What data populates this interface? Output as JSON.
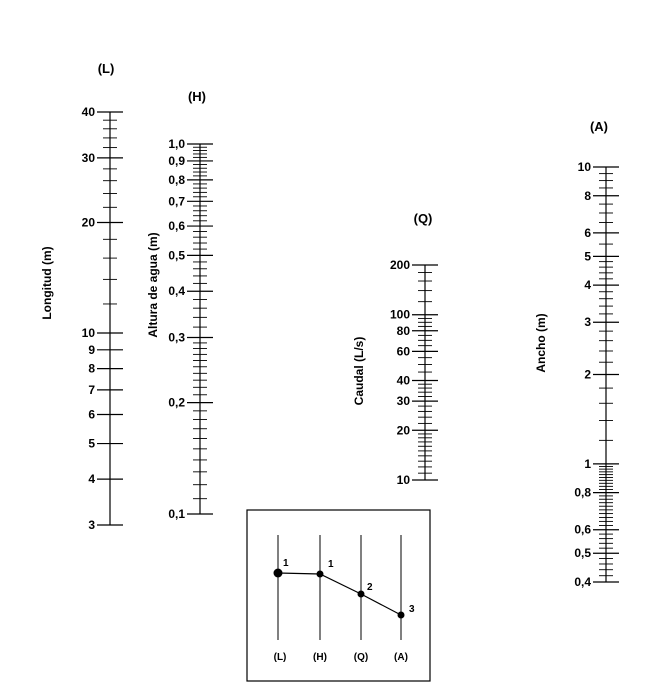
{
  "scales": [
    {
      "id": "L",
      "title": "(L)",
      "name": "Longitud (m)",
      "scale": "log",
      "range": [
        3,
        40
      ],
      "labels": [
        "40",
        "30",
        "20",
        "10",
        "9",
        "8",
        "7",
        "6",
        "5",
        "4",
        "3"
      ]
    },
    {
      "id": "H",
      "title": "(H)",
      "name": "Altura de agua (m)",
      "scale": "log",
      "range": [
        0.1,
        1.0
      ],
      "labels": [
        "1,0",
        "0,9",
        "0,8",
        "0,7",
        "0,6",
        "0,5",
        "0,4",
        "0,3",
        "0,2",
        "0,1"
      ]
    },
    {
      "id": "Q",
      "title": "(Q)",
      "name": "Caudal (L/s)",
      "scale": "log",
      "range": [
        10,
        200
      ],
      "labels": [
        "200",
        "100",
        "80",
        "60",
        "40",
        "30",
        "20",
        "10"
      ]
    },
    {
      "id": "A",
      "title": "(A)",
      "name": "Ancho (m)",
      "scale": "log",
      "range": [
        0.4,
        10
      ],
      "labels": [
        "10",
        "8",
        "6",
        "5",
        "4",
        "3",
        "2",
        "1",
        "0,8",
        "0,6",
        "0,5",
        "0,4"
      ]
    }
  ],
  "legend": {
    "axis_labels": [
      "(L)",
      "(H)",
      "(Q)",
      "(A)"
    ],
    "step_labels": [
      "1",
      "1",
      "2",
      "3"
    ]
  }
}
